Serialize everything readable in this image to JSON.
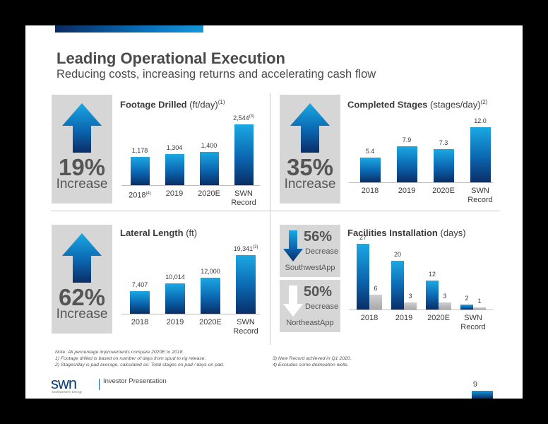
{
  "header": {
    "title": "Leading Operational Execution",
    "subtitle": "Reducing costs, increasing returns and accelerating cash flow"
  },
  "colors": {
    "bar_blue_top": "#1ba8e3",
    "bar_blue_bottom": "#0a2e66",
    "gray_bar": "#b5b5b5",
    "panel_gray": "#d6d6d6"
  },
  "panels": {
    "footage": {
      "title_bold": "Footage Drilled",
      "title_unit": "(ft/day)",
      "note": "(1)",
      "pct": "19%",
      "pct_word": "Increase"
    },
    "stages": {
      "title_bold": "Completed Stages",
      "title_unit": "(stages/day)",
      "note": "(2)",
      "pct": "35%",
      "pct_word": "Increase"
    },
    "lateral": {
      "title_bold": "Lateral Length",
      "title_unit": "(ft)",
      "pct": "62%",
      "pct_word": "Increase"
    },
    "facilities": {
      "title_bold": "Facilities Installation",
      "title_unit": "(days)",
      "southwest": {
        "pct": "56%",
        "word": "Decrease",
        "label": "SouthwestApp"
      },
      "northeast": {
        "pct": "50%",
        "word": "Decrease",
        "label": "NortheastApp"
      }
    }
  },
  "chart_data": [
    {
      "type": "bar",
      "title": "Footage Drilled (ft/day)",
      "categories": [
        "2018",
        "2019",
        "2020E",
        "SWN Record"
      ],
      "category_notes": [
        "(4)",
        "",
        "",
        ""
      ],
      "values": [
        1178,
        1304,
        1400,
        2544
      ],
      "value_labels": [
        "1,178",
        "1,304",
        "1,400",
        "2,544"
      ],
      "value_notes": [
        "",
        "",
        "",
        "(3)"
      ],
      "ylim": [
        0,
        2800
      ]
    },
    {
      "type": "bar",
      "title": "Completed Stages (stages/day)",
      "categories": [
        "2018",
        "2019",
        "2020E",
        "SWN Record"
      ],
      "values": [
        5.4,
        7.9,
        7.3,
        12.0
      ],
      "value_labels": [
        "5.4",
        "7.9",
        "7.3",
        "12.0"
      ],
      "ylim": [
        0,
        13
      ]
    },
    {
      "type": "bar",
      "title": "Lateral Length (ft)",
      "categories": [
        "2018",
        "2019",
        "2020E",
        "SWN Record"
      ],
      "values": [
        7407,
        10014,
        12000,
        19341
      ],
      "value_labels": [
        "7,407",
        "10,014",
        "12,000",
        "19,341"
      ],
      "value_notes": [
        "",
        "",
        "",
        "(3)"
      ],
      "ylim": [
        0,
        21000
      ]
    },
    {
      "type": "bar",
      "title": "Facilities Installation (days)",
      "categories": [
        "2018",
        "2019",
        "2020E",
        "SWN Record"
      ],
      "series": [
        {
          "name": "SouthwestApp",
          "values": [
            27,
            20,
            12,
            2
          ]
        },
        {
          "name": "NortheastApp",
          "values": [
            6,
            3,
            3,
            1
          ]
        }
      ],
      "ylim": [
        0,
        28
      ]
    }
  ],
  "footnotes": {
    "left": [
      "Note: All percentage improvements compare 2020E to 2018.",
      "1) Footage drilled is based on number of days from spud to rig release.",
      "2) Stages/day is pad average, calculated as: Total stages on pad / days on pad."
    ],
    "right": [
      "3) New Record achieved in Q1 2020.",
      "4) Excludes some delineation wells."
    ]
  },
  "footer": {
    "logo": "swn",
    "logo_sub": "Southwestern Energy",
    "text": "Investor Presentation",
    "page": "9"
  }
}
